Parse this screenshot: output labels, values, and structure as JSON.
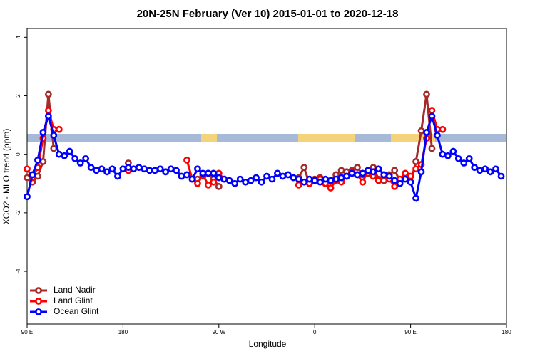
{
  "chart_data": {
    "type": "line",
    "title": "20N-25N February (Ver 10)   2015-01-01 to 2020-12-18",
    "xlabel": "Longitude",
    "ylabel": "XCO2 - MLO trend (ppm)",
    "xlim": [
      90,
      540
    ],
    "ylim": [
      -5.8,
      4.3
    ],
    "xticks": [
      {
        "value": 90,
        "label": "90 E"
      },
      {
        "value": 180,
        "label": "180"
      },
      {
        "value": 270,
        "label": "90 W"
      },
      {
        "value": 360,
        "label": "0"
      },
      {
        "value": 450,
        "label": "90 E"
      },
      {
        "value": 540,
        "label": "180"
      }
    ],
    "yticks": [
      4,
      2,
      0,
      -2,
      -4
    ],
    "legend": "lower left",
    "series": [
      {
        "name": "Land Nadir",
        "color": "#a52a2a",
        "x": [
          90,
          95,
          100,
          105,
          110,
          115,
          120,
          185,
          190,
          250,
          255,
          260,
          265,
          270,
          275,
          345,
          350,
          355,
          360,
          365,
          370,
          375,
          380,
          385,
          390,
          395,
          400,
          405,
          410,
          415,
          420,
          425,
          430,
          435,
          440,
          445,
          450,
          455,
          460,
          465,
          470
        ],
        "values": [
          -0.8,
          -0.95,
          -0.75,
          -0.25,
          2.05,
          0.2,
          null,
          -0.3,
          null,
          -0.85,
          -0.75,
          -0.65,
          -0.85,
          -1.1,
          null,
          -0.8,
          -0.45,
          -1.0,
          -0.85,
          -0.8,
          -0.95,
          -0.9,
          -0.7,
          -0.55,
          -0.6,
          -0.55,
          -0.45,
          -0.7,
          -0.65,
          -0.45,
          -0.85,
          -0.9,
          -0.7,
          -0.55,
          -0.9,
          -0.75,
          -0.95,
          -0.25,
          0.8,
          2.05,
          0.2
        ]
      },
      {
        "name": "Land Glint",
        "color": "#ff0000",
        "x": [
          90,
          95,
          100,
          105,
          110,
          115,
          120,
          125,
          185,
          190,
          240,
          245,
          250,
          255,
          260,
          265,
          270,
          275,
          280,
          345,
          350,
          355,
          360,
          365,
          370,
          375,
          380,
          385,
          390,
          395,
          400,
          405,
          410,
          415,
          420,
          425,
          430,
          435,
          440,
          445,
          450,
          455,
          460,
          465,
          470,
          475,
          480
        ],
        "values": [
          -0.5,
          -0.8,
          -0.45,
          0.55,
          1.5,
          0.85,
          0.85,
          null,
          -0.55,
          null,
          -0.2,
          -0.85,
          -1.0,
          -0.7,
          -1.05,
          -0.95,
          -0.65,
          -0.85,
          null,
          -1.05,
          -0.95,
          -1.0,
          -0.9,
          -0.85,
          -1.0,
          -1.15,
          -0.9,
          -0.95,
          -0.75,
          -0.6,
          -0.7,
          -0.95,
          -0.55,
          -0.75,
          -0.9,
          -0.7,
          -0.85,
          -1.1,
          -0.85,
          -0.65,
          -0.75,
          -0.5,
          -0.35,
          0.55,
          1.5,
          0.85,
          0.85
        ]
      },
      {
        "name": "Ocean Glint",
        "color": "#0000ff",
        "x": [
          90,
          95,
          100,
          105,
          110,
          115,
          120,
          125,
          130,
          135,
          140,
          145,
          150,
          155,
          160,
          165,
          170,
          175,
          180,
          185,
          190,
          195,
          200,
          205,
          210,
          215,
          220,
          225,
          230,
          235,
          240,
          245,
          250,
          255,
          260,
          265,
          270,
          275,
          280,
          285,
          290,
          295,
          300,
          305,
          310,
          315,
          320,
          325,
          330,
          335,
          340,
          345,
          350,
          355,
          360,
          365,
          370,
          375,
          380,
          385,
          390,
          395,
          400,
          405,
          410,
          415,
          420,
          425,
          430,
          435,
          440,
          445,
          450,
          455,
          460,
          465,
          470,
          475,
          480,
          485,
          490,
          495,
          500,
          505,
          510,
          515,
          520,
          525,
          530,
          535
        ],
        "values": [
          -1.45,
          -0.7,
          -0.2,
          0.75,
          1.3,
          0.65,
          0.0,
          -0.05,
          0.1,
          -0.15,
          -0.3,
          -0.15,
          -0.45,
          -0.55,
          -0.5,
          -0.6,
          -0.5,
          -0.75,
          -0.5,
          -0.45,
          -0.5,
          -0.45,
          -0.5,
          -0.55,
          -0.55,
          -0.5,
          -0.6,
          -0.5,
          -0.55,
          -0.75,
          -0.7,
          -0.85,
          -0.5,
          -0.65,
          -0.65,
          -0.65,
          -0.8,
          -0.85,
          -0.9,
          -1.0,
          -0.85,
          -0.95,
          -0.9,
          -0.8,
          -0.95,
          -0.75,
          -0.85,
          -0.65,
          -0.75,
          -0.7,
          -0.8,
          -0.85,
          -0.95,
          -0.85,
          -0.9,
          -0.95,
          -0.85,
          -0.9,
          -0.85,
          -0.8,
          -0.75,
          -0.65,
          -0.7,
          -0.65,
          -0.55,
          -0.6,
          -0.5,
          -0.7,
          -0.75,
          -0.9,
          -1.0,
          -0.85,
          -0.95,
          -1.5,
          -0.6,
          0.75,
          1.3,
          0.65,
          0.0,
          -0.05,
          0.1,
          -0.15,
          -0.3,
          -0.15,
          -0.45,
          -0.55,
          -0.5,
          -0.6,
          -0.5,
          -0.75
        ]
      }
    ]
  }
}
